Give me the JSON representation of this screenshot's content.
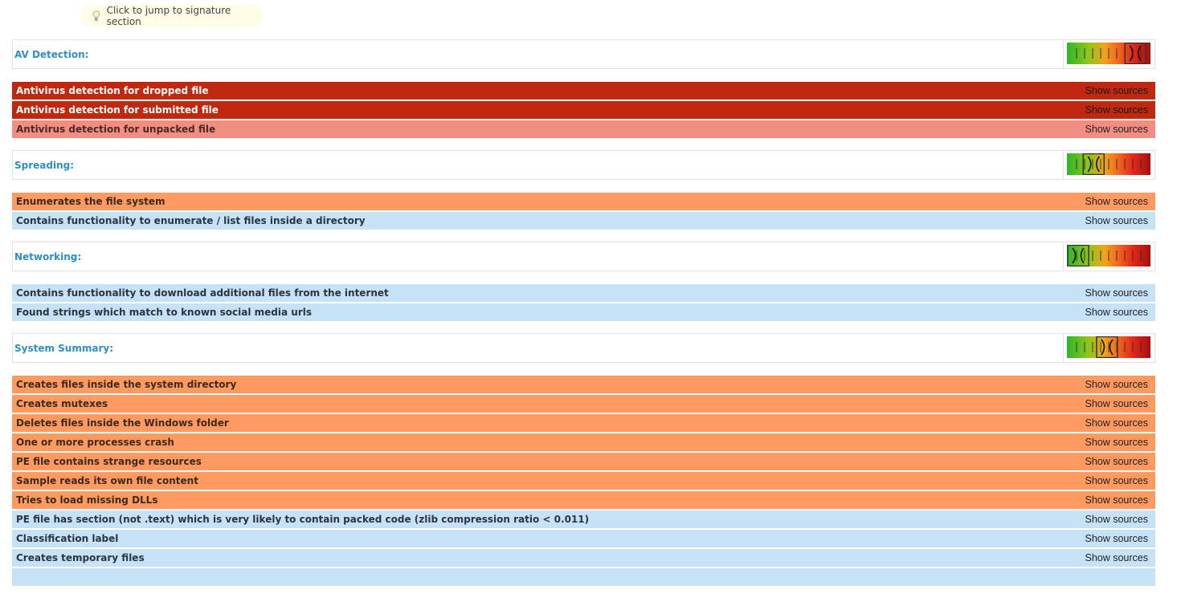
{
  "hint": {
    "label": "Click to jump to signature section",
    "icon": "lightbulb-icon"
  },
  "source_link_label": "Show sources",
  "sections": [
    {
      "title": "AV Detection:",
      "level": 0.82,
      "rows": [
        {
          "text": "Antivirus detection for dropped file",
          "severity": "high"
        },
        {
          "text": "Antivirus detection for submitted file",
          "severity": "high"
        },
        {
          "text": "Antivirus detection for unpacked file",
          "severity": "pink"
        }
      ]
    },
    {
      "title": "Spreading:",
      "level": 0.32,
      "rows": [
        {
          "text": "Enumerates the file system",
          "severity": "orange"
        },
        {
          "text": "Contains functionality to enumerate / list files inside a directory",
          "severity": "info"
        }
      ]
    },
    {
      "title": "Networking:",
      "level": 0.1,
      "rows": [
        {
          "text": "Contains functionality to download additional files from the internet",
          "severity": "info"
        },
        {
          "text": "Found strings which match to known social media urls",
          "severity": "info"
        }
      ]
    },
    {
      "title": "System Summary:",
      "level": 0.48,
      "rows": [
        {
          "text": "Creates files inside the system directory",
          "severity": "orange"
        },
        {
          "text": "Creates mutexes",
          "severity": "orange"
        },
        {
          "text": "Deletes files inside the Windows folder",
          "severity": "orange"
        },
        {
          "text": "One or more processes crash",
          "severity": "orange"
        },
        {
          "text": "PE file contains strange resources",
          "severity": "orange"
        },
        {
          "text": "Sample reads its own file content",
          "severity": "orange"
        },
        {
          "text": "Tries to load missing DLLs",
          "severity": "orange"
        },
        {
          "text": "PE file has section (not .text) which is very likely to contain packed code (zlib compression ratio < 0.011)",
          "severity": "info"
        },
        {
          "text": "Classification label",
          "severity": "info"
        },
        {
          "text": "Creates temporary files",
          "severity": "info"
        },
        {
          "text": "",
          "severity": "info"
        }
      ]
    }
  ],
  "colors": {
    "high": "#c0290f",
    "pink": "#f28d82",
    "orange": "#fe995f",
    "info": "#c6e2f7",
    "section_title": "#2e8fc2"
  }
}
